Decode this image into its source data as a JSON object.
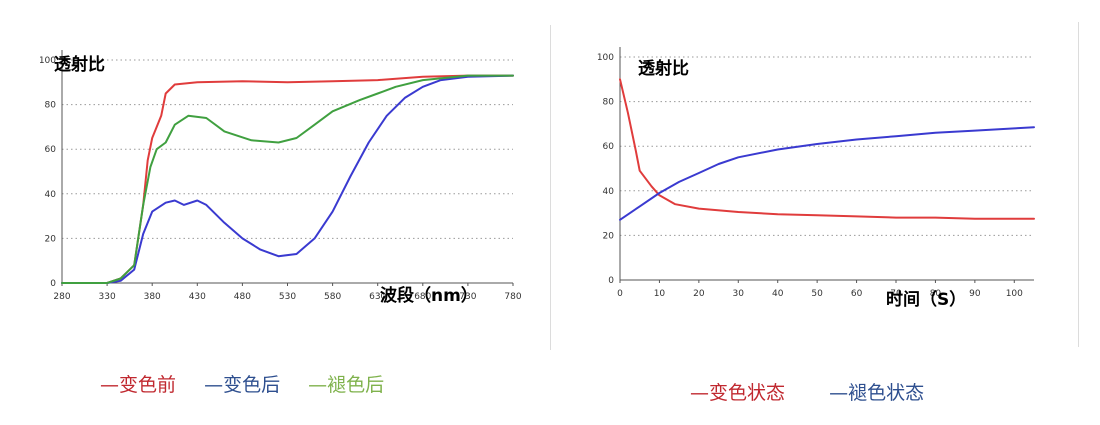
{
  "chart_data": [
    {
      "type": "line",
      "ylabel": "透射比",
      "xlabel": "波段（nm）",
      "xlim": [
        280,
        780
      ],
      "ylim": [
        0,
        100
      ],
      "x_ticks": [
        "280",
        "330",
        "380",
        "430",
        "480",
        "530",
        "580",
        "630",
        "680",
        "730",
        "780"
      ],
      "y_ticks": [
        "0",
        "20",
        "40",
        "60",
        "80",
        "100"
      ],
      "grid": "horizontal-dotted",
      "series": [
        {
          "name": "变色前",
          "color": "#e03c3c",
          "points": [
            [
              280,
              0
            ],
            [
              330,
              0
            ],
            [
              345,
              2
            ],
            [
              360,
              8
            ],
            [
              370,
              35
            ],
            [
              375,
              55
            ],
            [
              380,
              65
            ],
            [
              390,
              75
            ],
            [
              395,
              85
            ],
            [
              405,
              89
            ],
            [
              430,
              90
            ],
            [
              480,
              90.5
            ],
            [
              530,
              90
            ],
            [
              580,
              90.5
            ],
            [
              630,
              91
            ],
            [
              680,
              92.5
            ],
            [
              730,
              93
            ],
            [
              780,
              93
            ]
          ]
        },
        {
          "name": "变色后",
          "color": "#3a3ad0",
          "points": [
            [
              280,
              0
            ],
            [
              330,
              0
            ],
            [
              345,
              1
            ],
            [
              360,
              6
            ],
            [
              370,
              22
            ],
            [
              380,
              32
            ],
            [
              395,
              36
            ],
            [
              405,
              37
            ],
            [
              415,
              35
            ],
            [
              430,
              37
            ],
            [
              440,
              35
            ],
            [
              460,
              27
            ],
            [
              480,
              20
            ],
            [
              500,
              15
            ],
            [
              520,
              12
            ],
            [
              540,
              13
            ],
            [
              560,
              20
            ],
            [
              580,
              32
            ],
            [
              600,
              48
            ],
            [
              620,
              63
            ],
            [
              640,
              75
            ],
            [
              660,
              83
            ],
            [
              680,
              88
            ],
            [
              700,
              91
            ],
            [
              730,
              92.5
            ],
            [
              780,
              93
            ]
          ]
        },
        {
          "name": "褪色后",
          "color": "#40a040",
          "points": [
            [
              280,
              0
            ],
            [
              330,
              0
            ],
            [
              345,
              2
            ],
            [
              360,
              8
            ],
            [
              370,
              35
            ],
            [
              378,
              52
            ],
            [
              385,
              60
            ],
            [
              395,
              63
            ],
            [
              405,
              71
            ],
            [
              420,
              75
            ],
            [
              440,
              74
            ],
            [
              460,
              68
            ],
            [
              490,
              64
            ],
            [
              520,
              63
            ],
            [
              540,
              65
            ],
            [
              560,
              71
            ],
            [
              580,
              77
            ],
            [
              610,
              82
            ],
            [
              630,
              85
            ],
            [
              650,
              88
            ],
            [
              680,
              91
            ],
            [
              730,
              93
            ],
            [
              780,
              93
            ]
          ]
        }
      ]
    },
    {
      "type": "line",
      "ylabel": "透射比",
      "xlabel": "时间（S）",
      "xlim": [
        0,
        105
      ],
      "ylim": [
        0,
        100
      ],
      "x_ticks": [
        "0",
        "10",
        "20",
        "30",
        "40",
        "50",
        "60",
        "70",
        "80",
        "90",
        "100"
      ],
      "y_ticks": [
        "0",
        "20",
        "40",
        "60",
        "80",
        "100"
      ],
      "grid": "horizontal-dotted",
      "series": [
        {
          "name": "变色状态",
          "color": "#e03c3c",
          "points": [
            [
              0,
              90
            ],
            [
              2,
              75
            ],
            [
              4,
              58
            ],
            [
              5,
              49
            ],
            [
              8,
              42
            ],
            [
              10,
              38
            ],
            [
              14,
              34
            ],
            [
              20,
              32
            ],
            [
              30,
              30.5
            ],
            [
              40,
              29.5
            ],
            [
              50,
              29
            ],
            [
              60,
              28.5
            ],
            [
              70,
              28
            ],
            [
              80,
              28
            ],
            [
              90,
              27.5
            ],
            [
              105,
              27.5
            ]
          ]
        },
        {
          "name": "褪色状态",
          "color": "#3a3ad0",
          "points": [
            [
              0,
              27
            ],
            [
              5,
              33
            ],
            [
              10,
              39
            ],
            [
              15,
              44
            ],
            [
              20,
              48
            ],
            [
              25,
              52
            ],
            [
              30,
              55
            ],
            [
              40,
              58.5
            ],
            [
              50,
              61
            ],
            [
              60,
              63
            ],
            [
              70,
              64.5
            ],
            [
              80,
              66
            ],
            [
              90,
              67
            ],
            [
              100,
              68
            ],
            [
              105,
              68.5
            ]
          ]
        }
      ]
    }
  ],
  "legends": [
    [
      {
        "label": "—变色前",
        "color": "#c0282f"
      },
      {
        "label": "—变色后",
        "color": "#2e4f8f"
      },
      {
        "label": "—褪色后",
        "color": "#7fb24c"
      }
    ],
    [
      {
        "label": "—变色状态",
        "color": "#c0282f"
      },
      {
        "label": "—褪色状态",
        "color": "#2e4f8f"
      }
    ]
  ]
}
